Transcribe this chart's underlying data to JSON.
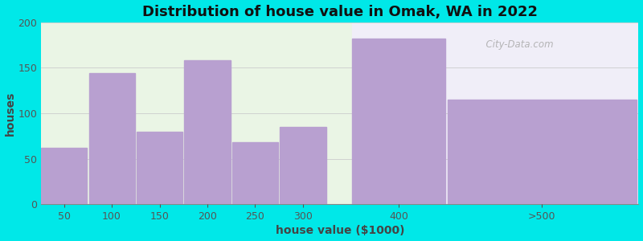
{
  "title": "Distribution of house value in Omak, WA in 2022",
  "xlabel": "house value ($1000)",
  "ylabel": "houses",
  "categories": [
    "50",
    "100",
    "150",
    "200",
    "250",
    "300",
    "400",
    ">500"
  ],
  "x_positions": [
    50,
    100,
    150,
    200,
    250,
    300,
    400,
    550
  ],
  "bar_widths": [
    50,
    50,
    50,
    50,
    50,
    50,
    100,
    200
  ],
  "values": [
    62,
    144,
    80,
    158,
    68,
    85,
    182,
    115
  ],
  "bar_color": "#b8a0d0",
  "ylim": [
    0,
    200
  ],
  "yticks": [
    0,
    50,
    100,
    150,
    200
  ],
  "xlim": [
    25,
    650
  ],
  "bg_color_outer": "#00e8e8",
  "bg_color_plot_left": "#eaf5e5",
  "bg_color_plot_right": "#f0eef8",
  "title_fontsize": 13,
  "axis_label_fontsize": 10,
  "tick_fontsize": 9,
  "watermark_text": "  City-Data.com",
  "green_bg_end": 350,
  "white_bg_start": 350
}
